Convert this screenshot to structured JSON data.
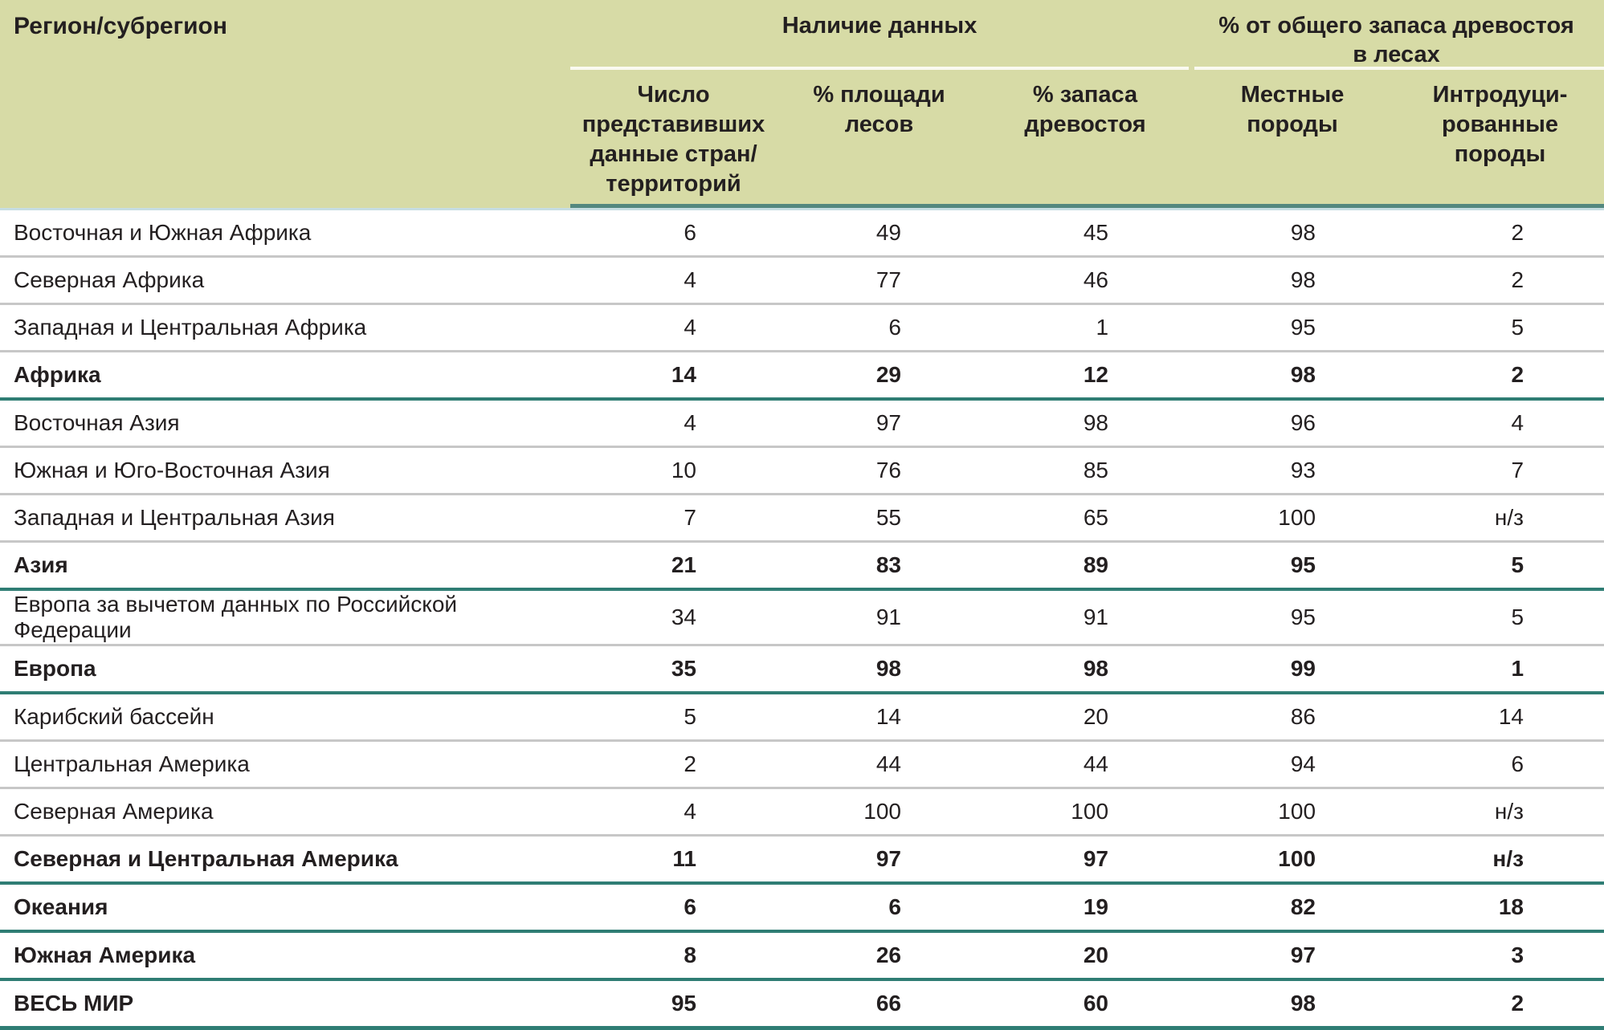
{
  "table": {
    "region_header": "Регион/субрегион",
    "groups": [
      {
        "label": "Наличие данных"
      },
      {
        "label": "% от общего запаса древостоя\nв лесах"
      }
    ],
    "columns": [
      {
        "label": "Число\nпредставивших\nданные стран/\nтерриторий"
      },
      {
        "label": "% площади\nлесов"
      },
      {
        "label": "% запаса\nдревостоя"
      },
      {
        "label": "Местные\nпороды"
      },
      {
        "label": "Интродуци-\nрованные\nпороды"
      }
    ],
    "rows": [
      {
        "region": "Восточная и Южная Африка",
        "values": [
          "6",
          "49",
          "45",
          "98",
          "2"
        ],
        "bold": false
      },
      {
        "region": "Северная Африка",
        "values": [
          "4",
          "77",
          "46",
          "98",
          "2"
        ],
        "bold": false
      },
      {
        "region": "Западная и Центральная Африка",
        "values": [
          "4",
          "6",
          "1",
          "95",
          "5"
        ],
        "bold": false
      },
      {
        "region": "Африка",
        "values": [
          "14",
          "29",
          "12",
          "98",
          "2"
        ],
        "bold": true
      },
      {
        "region": "Восточная Азия",
        "values": [
          "4",
          "97",
          "98",
          "96",
          "4"
        ],
        "bold": false
      },
      {
        "region": "Южная и Юго-Восточная Азия",
        "values": [
          "10",
          "76",
          "85",
          "93",
          "7"
        ],
        "bold": false
      },
      {
        "region": "Западная и Центральная Азия",
        "values": [
          "7",
          "55",
          "65",
          "100",
          "н/з"
        ],
        "bold": false
      },
      {
        "region": "Азия",
        "values": [
          "21",
          "83",
          "89",
          "95",
          "5"
        ],
        "bold": true
      },
      {
        "region": "Европа за вычетом данных по Российской Федерации",
        "values": [
          "34",
          "91",
          "91",
          "95",
          "5"
        ],
        "bold": false
      },
      {
        "region": "Европа",
        "values": [
          "35",
          "98",
          "98",
          "99",
          "1"
        ],
        "bold": true
      },
      {
        "region": "Карибский бассейн",
        "values": [
          "5",
          "14",
          "20",
          "86",
          "14"
        ],
        "bold": false
      },
      {
        "region": "Центральная Америка",
        "values": [
          "2",
          "44",
          "44",
          "94",
          "6"
        ],
        "bold": false
      },
      {
        "region": "Северная Америка",
        "values": [
          "4",
          "100",
          "100",
          "100",
          "н/з"
        ],
        "bold": false
      },
      {
        "region": "Северная и Центральная Америка",
        "values": [
          "11",
          "97",
          "97",
          "100",
          "н/з"
        ],
        "bold": true
      },
      {
        "region": "Океания",
        "values": [
          "6",
          "6",
          "19",
          "82",
          "18"
        ],
        "bold": true
      },
      {
        "region": "Южная Америка",
        "values": [
          "8",
          "26",
          "20",
          "97",
          "3"
        ],
        "bold": true
      },
      {
        "region": "ВЕСЬ МИР",
        "values": [
          "95",
          "66",
          "60",
          "98",
          "2"
        ],
        "bold": true
      }
    ]
  },
  "colors": {
    "header_bg": "#d7dba6",
    "header_rule": "#53887f",
    "pale_rule": "#c6dde2",
    "total_rule": "#2f7d74",
    "row_rule": "#c7c7c7",
    "text": "#231f20",
    "group_underline": "#fafaf0"
  }
}
